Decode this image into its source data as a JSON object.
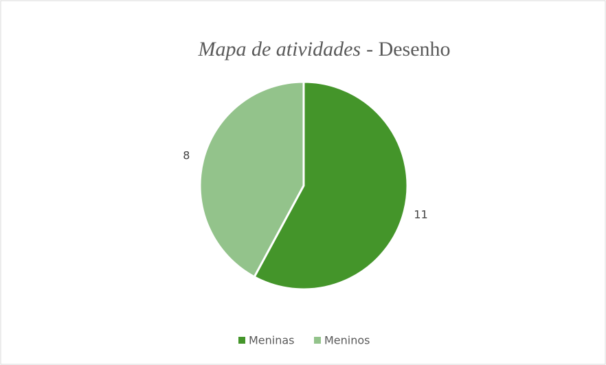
{
  "chart_data": {
    "type": "pie",
    "title": {
      "italic": "Mapa de atividades",
      "regular": "- Desenho"
    },
    "categories": [
      "Meninas",
      "Meninos"
    ],
    "values": [
      11,
      8
    ],
    "colors": [
      "#44952a",
      "#93c38b"
    ],
    "legend": "bottom"
  }
}
